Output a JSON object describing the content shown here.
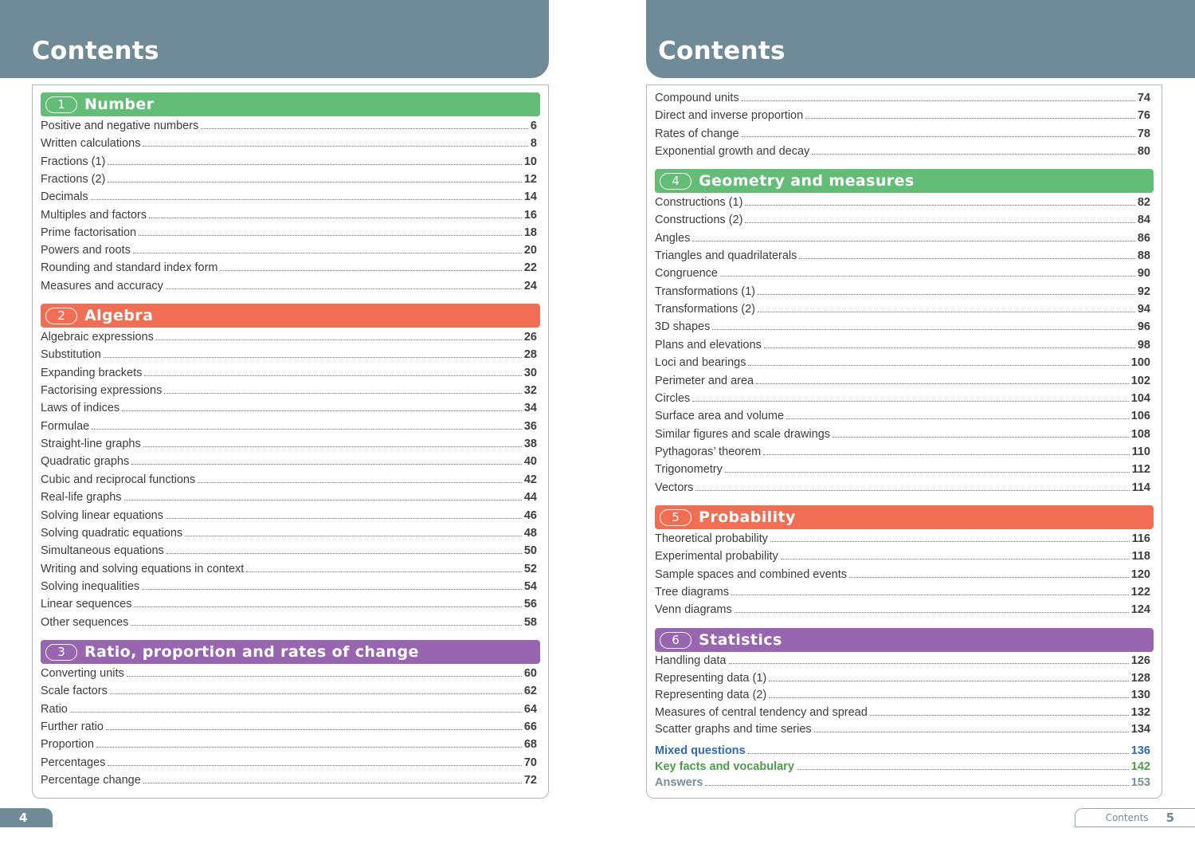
{
  "left_page": {
    "header": "Contents",
    "page_number": "4",
    "sections": [
      {
        "num": "1",
        "title": "Number",
        "color": "#64bd77",
        "entries": [
          {
            "label": "Positive and negative numbers",
            "page": "6"
          },
          {
            "label": "Written calculations",
            "page": "8"
          },
          {
            "label": "Fractions (1)",
            "page": "10"
          },
          {
            "label": "Fractions (2)",
            "page": "12"
          },
          {
            "label": "Decimals",
            "page": "14"
          },
          {
            "label": "Multiples and factors",
            "page": "16"
          },
          {
            "label": "Prime factorisation",
            "page": "18"
          },
          {
            "label": "Powers and roots",
            "page": "20"
          },
          {
            "label": "Rounding and standard index form",
            "page": "22"
          },
          {
            "label": "Measures and accuracy",
            "page": "24"
          }
        ]
      },
      {
        "num": "2",
        "title": "Algebra",
        "color": "#f06e53",
        "entries": [
          {
            "label": "Algebraic expressions",
            "page": "26"
          },
          {
            "label": "Substitution",
            "page": "28"
          },
          {
            "label": "Expanding brackets",
            "page": "30"
          },
          {
            "label": "Factorising expressions",
            "page": "32"
          },
          {
            "label": "Laws of indices",
            "page": "34"
          },
          {
            "label": "Formulae",
            "page": "36"
          },
          {
            "label": "Straight-line graphs",
            "page": "38"
          },
          {
            "label": "Quadratic graphs",
            "page": "40"
          },
          {
            "label": "Cubic and reciprocal functions",
            "page": "42"
          },
          {
            "label": "Real-life graphs",
            "page": "44"
          },
          {
            "label": "Solving linear equations",
            "page": "46"
          },
          {
            "label": "Solving quadratic equations",
            "page": "48"
          },
          {
            "label": "Simultaneous equations",
            "page": "50"
          },
          {
            "label": "Writing and solving equations in context",
            "page": "52"
          },
          {
            "label": "Solving inequalities",
            "page": "54"
          },
          {
            "label": "Linear sequences",
            "page": "56"
          },
          {
            "label": "Other sequences",
            "page": "58"
          }
        ]
      },
      {
        "num": "3",
        "title": "Ratio, proportion and rates of change",
        "color": "#9866b1",
        "entries": [
          {
            "label": "Converting units",
            "page": "60"
          },
          {
            "label": "Scale factors",
            "page": "62"
          },
          {
            "label": "Ratio",
            "page": "64"
          },
          {
            "label": "Further ratio",
            "page": "66"
          },
          {
            "label": "Proportion",
            "page": "68"
          },
          {
            "label": "Percentages",
            "page": "70"
          },
          {
            "label": "Percentage change",
            "page": "72"
          }
        ]
      }
    ]
  },
  "right_page": {
    "header": "Contents",
    "footer_label": "Contents",
    "page_number": "5",
    "continued_entries": [
      {
        "label": "Compound units",
        "page": "74"
      },
      {
        "label": "Direct and inverse proportion",
        "page": "76"
      },
      {
        "label": "Rates of change",
        "page": "78"
      },
      {
        "label": "Exponential growth and decay",
        "page": "80"
      }
    ],
    "sections": [
      {
        "num": "4",
        "title": "Geometry and measures",
        "color": "#64bd77",
        "entries": [
          {
            "label": "Constructions (1)",
            "page": "82"
          },
          {
            "label": "Constructions (2)",
            "page": "84"
          },
          {
            "label": "Angles",
            "page": "86"
          },
          {
            "label": "Triangles and quadrilaterals",
            "page": "88"
          },
          {
            "label": "Congruence",
            "page": "90"
          },
          {
            "label": "Transformations (1)",
            "page": "92"
          },
          {
            "label": "Transformations (2)",
            "page": "94"
          },
          {
            "label": "3D shapes",
            "page": "96"
          },
          {
            "label": "Plans and elevations",
            "page": "98"
          },
          {
            "label": "Loci and bearings",
            "page": "100"
          },
          {
            "label": "Perimeter and area",
            "page": "102"
          },
          {
            "label": "Circles",
            "page": "104"
          },
          {
            "label": "Surface area and volume",
            "page": "106"
          },
          {
            "label": "Similar figures and scale drawings",
            "page": "108"
          },
          {
            "label": "Pythagoras’ theorem",
            "page": "110"
          },
          {
            "label": "Trigonometry",
            "page": "112"
          },
          {
            "label": "Vectors",
            "page": "114"
          }
        ]
      },
      {
        "num": "5",
        "title": "Probability",
        "color": "#f06e53",
        "entries": [
          {
            "label": "Theoretical probability",
            "page": "116"
          },
          {
            "label": "Experimental probability",
            "page": "118"
          },
          {
            "label": "Sample spaces and combined events",
            "page": "120"
          },
          {
            "label": "Tree diagrams",
            "page": "122"
          },
          {
            "label": "Venn diagrams",
            "page": "124"
          }
        ]
      },
      {
        "num": "6",
        "title": "Statistics",
        "color": "#9866b1",
        "entries": [
          {
            "label": "Handling data",
            "page": "126"
          },
          {
            "label": "Representing data (1)",
            "page": "128"
          },
          {
            "label": "Representing data (2)",
            "page": "130"
          },
          {
            "label": "Measures of central tendency and spread",
            "page": "132"
          },
          {
            "label": "Scatter graphs and time series",
            "page": "134"
          }
        ]
      }
    ],
    "extras": [
      {
        "label": "Mixed questions",
        "page": "136",
        "color": "#2f69b3"
      },
      {
        "label": "Key facts and vocabulary",
        "page": "142",
        "color": "#4e9c4a"
      },
      {
        "label": "Answers",
        "page": "153",
        "color": "#7c8c97"
      }
    ]
  }
}
